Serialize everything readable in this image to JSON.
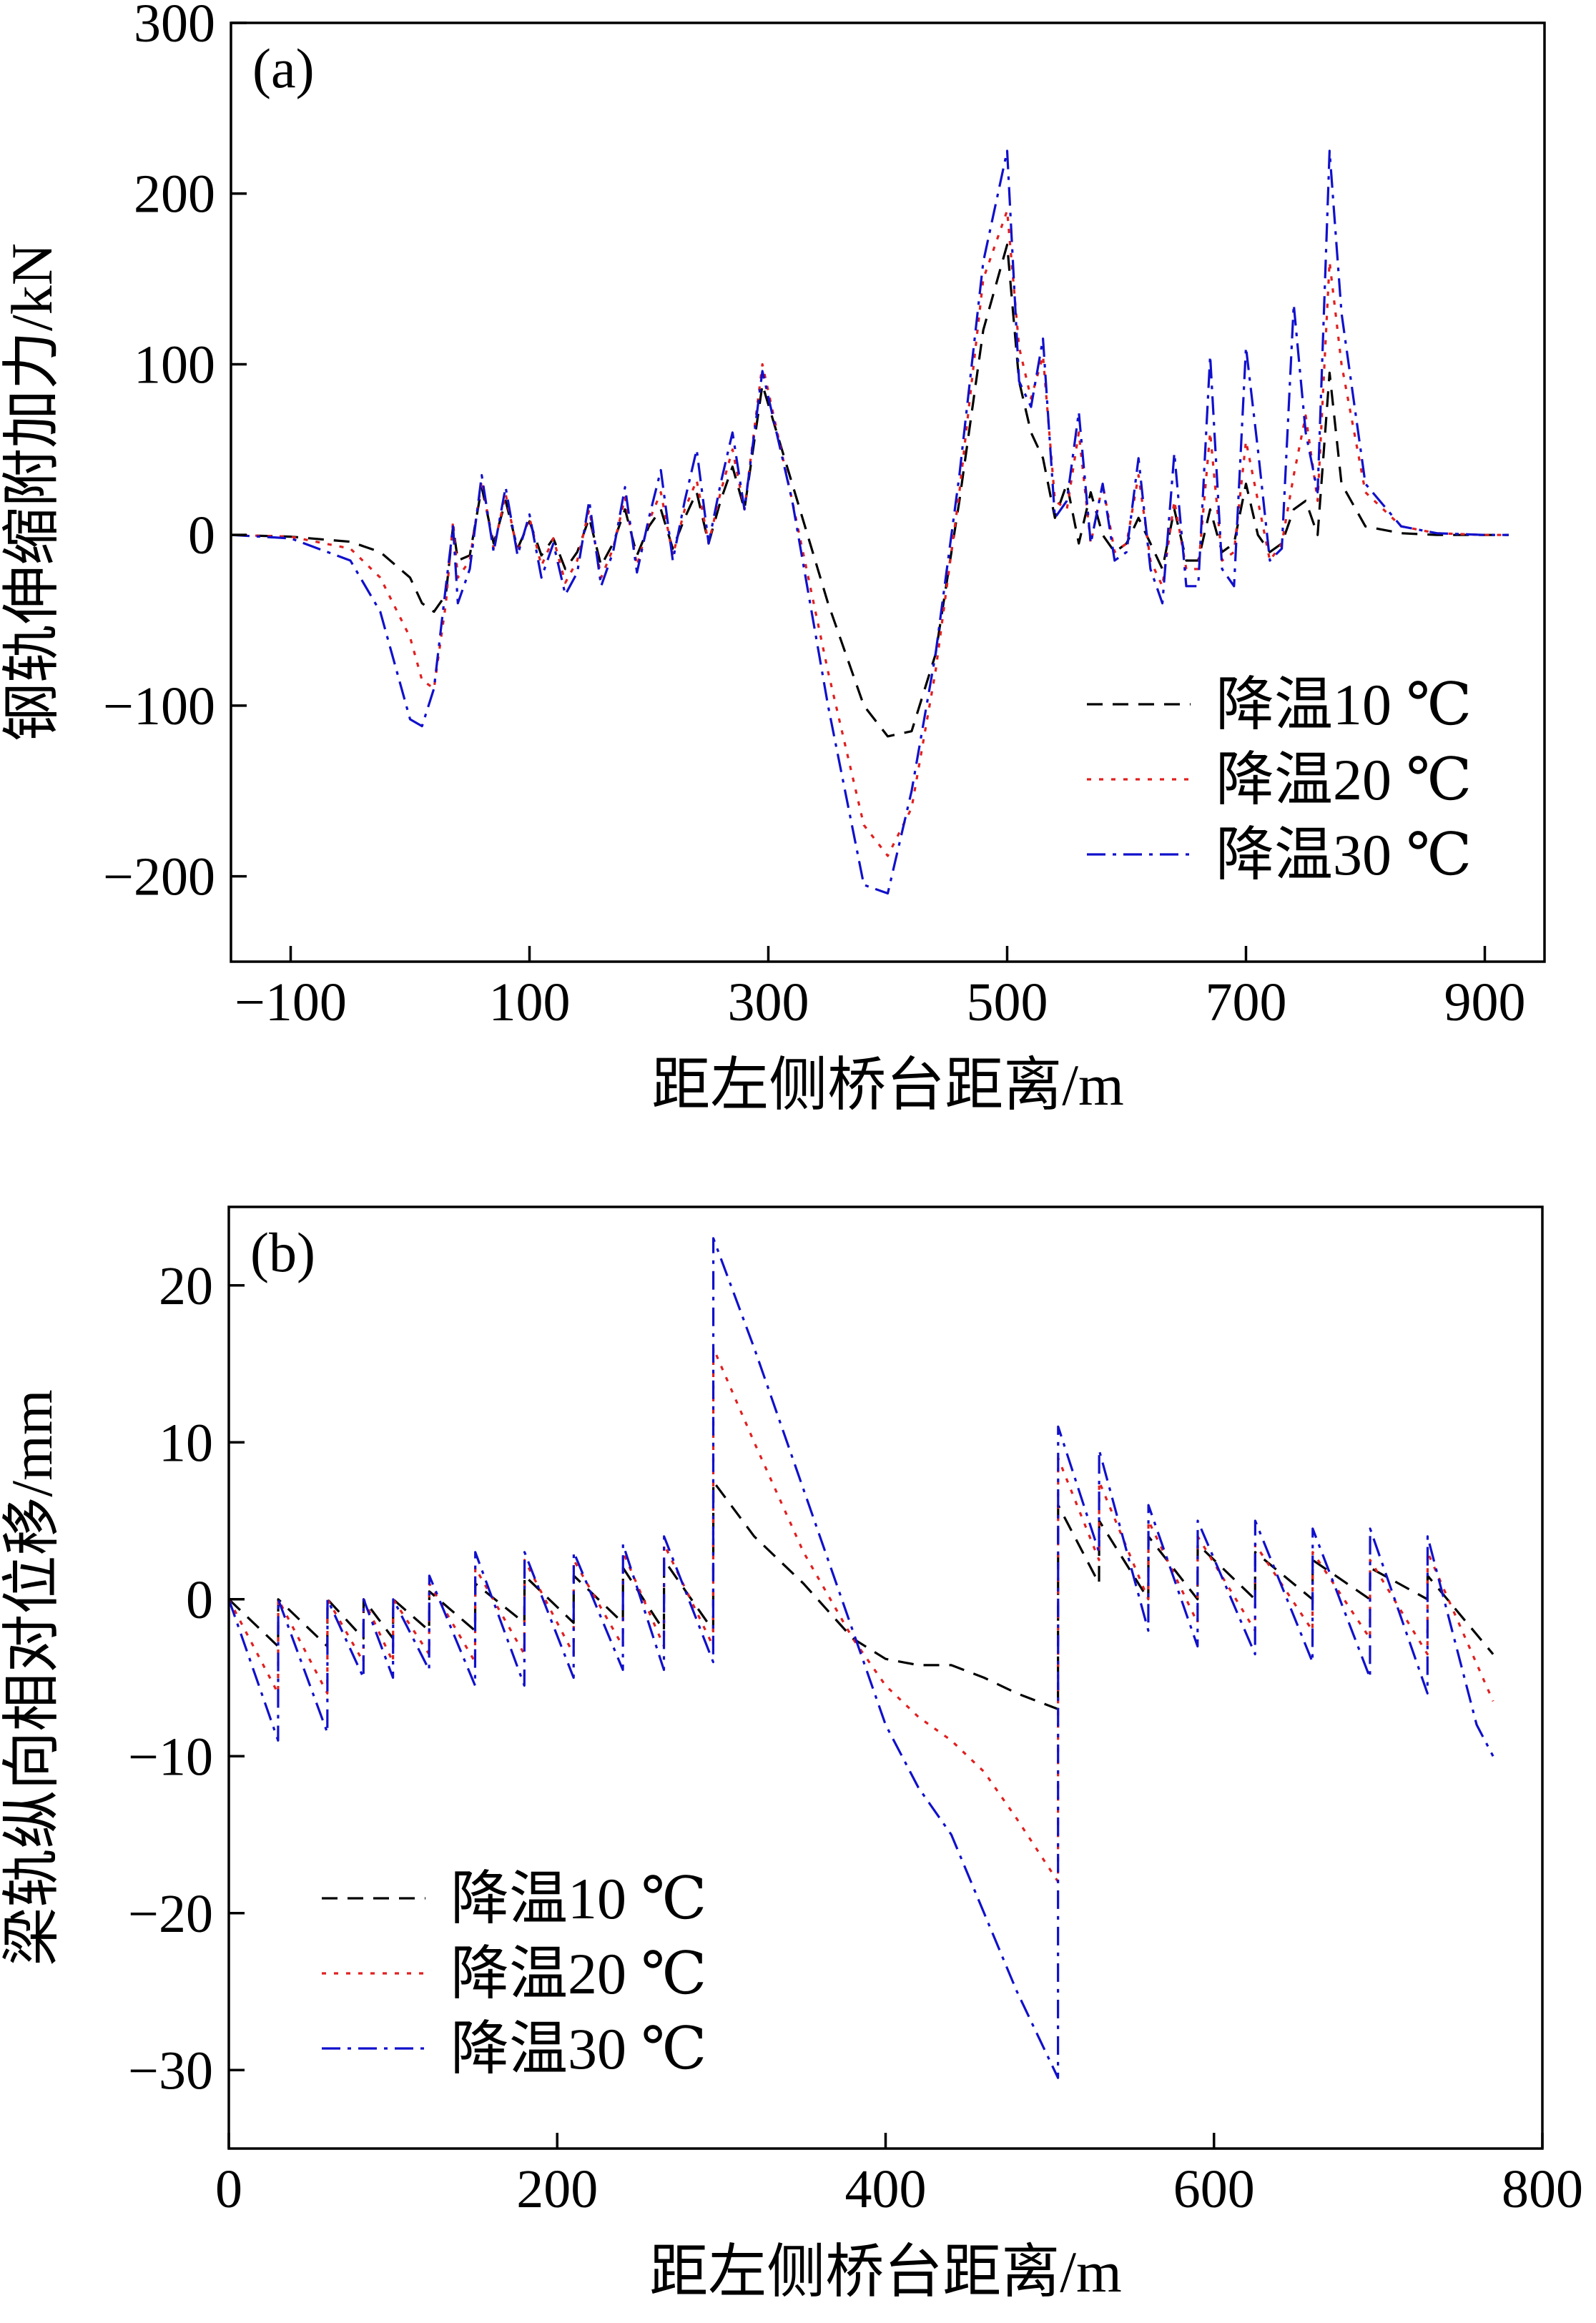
{
  "chart_data": [
    {
      "type": "line",
      "panel_label": "(a)",
      "xlabel": "距左侧桥台距离/m",
      "ylabel": "钢轨伸缩附加力/kN",
      "xlim": [
        -150,
        950
      ],
      "ylim": [
        -250,
        300
      ],
      "xticks": [
        -100,
        100,
        300,
        500,
        700,
        900
      ],
      "yticks": [
        -200,
        -100,
        0,
        100,
        200,
        300
      ],
      "xtick_labels": [
        "−100",
        "100",
        "300",
        "500",
        "700",
        "900"
      ],
      "ytick_labels": [
        "−200",
        "−100",
        "0",
        "100",
        "200",
        "300"
      ],
      "legend_position": "bottom-right",
      "series": [
        {
          "name": "降温10 ℃",
          "color": "#000000",
          "dash": "dashed",
          "x": [
            -150,
            -100,
            -50,
            -25,
            0,
            10,
            20,
            30,
            36,
            40,
            50,
            60,
            70,
            80,
            90,
            100,
            110,
            120,
            130,
            140,
            150,
            160,
            170,
            180,
            190,
            200,
            210,
            220,
            230,
            240,
            250,
            260,
            270,
            280,
            295,
            320,
            350,
            380,
            400,
            420,
            440,
            460,
            480,
            500,
            510,
            520,
            530,
            540,
            550,
            560,
            570,
            580,
            590,
            600,
            610,
            620,
            630,
            640,
            650,
            660,
            670,
            680,
            690,
            700,
            710,
            720,
            730,
            740,
            750,
            760,
            770,
            780,
            800,
            830,
            860,
            900,
            920
          ],
          "y": [
            0,
            -1,
            -4,
            -10,
            -25,
            -40,
            -45,
            -35,
            5,
            -15,
            -12,
            28,
            -5,
            20,
            -8,
            8,
            -12,
            -2,
            -20,
            -10,
            10,
            -18,
            -5,
            15,
            -12,
            5,
            15,
            -8,
            10,
            25,
            -5,
            20,
            40,
            15,
            88,
            30,
            -40,
            -100,
            -118,
            -115,
            -70,
            20,
            120,
            170,
            90,
            60,
            45,
            10,
            30,
            -5,
            25,
            0,
            -10,
            -5,
            10,
            -5,
            -20,
            15,
            -15,
            -15,
            15,
            -10,
            -5,
            30,
            0,
            -10,
            -5,
            15,
            20,
            0,
            95,
            30,
            5,
            1,
            0,
            0,
            0
          ]
        },
        {
          "name": "降温20 ℃",
          "color": "#e02020",
          "dash": "dotted",
          "x": [
            -150,
            -100,
            -50,
            -25,
            0,
            10,
            20,
            30,
            36,
            40,
            50,
            60,
            70,
            80,
            90,
            100,
            110,
            120,
            130,
            140,
            150,
            160,
            170,
            180,
            190,
            200,
            210,
            220,
            230,
            240,
            250,
            260,
            270,
            280,
            295,
            320,
            350,
            380,
            400,
            420,
            440,
            460,
            480,
            500,
            510,
            520,
            530,
            540,
            550,
            560,
            570,
            580,
            590,
            600,
            610,
            620,
            630,
            640,
            650,
            660,
            670,
            680,
            690,
            700,
            710,
            720,
            730,
            740,
            750,
            760,
            770,
            780,
            800,
            830,
            860,
            900,
            920
          ],
          "y": [
            0,
            -1,
            -8,
            -25,
            -60,
            -85,
            -90,
            -40,
            8,
            -25,
            -15,
            32,
            -8,
            24,
            -10,
            10,
            -18,
            -2,
            -28,
            -15,
            15,
            -25,
            -8,
            22,
            -18,
            8,
            25,
            -12,
            15,
            32,
            -5,
            25,
            50,
            15,
            100,
            20,
            -80,
            -170,
            -188,
            -160,
            -80,
            25,
            150,
            190,
            110,
            80,
            105,
            20,
            15,
            60,
            -5,
            30,
            -10,
            -5,
            35,
            -15,
            -30,
            20,
            -20,
            -20,
            60,
            -15,
            -10,
            55,
            20,
            -15,
            -5,
            35,
            70,
            20,
            160,
            100,
            25,
            5,
            1,
            0,
            0
          ]
        },
        {
          "name": "降温30 ℃",
          "color": "#1010cc",
          "dash": "dashdot",
          "x": [
            -150,
            -100,
            -50,
            -25,
            0,
            10,
            20,
            30,
            36,
            40,
            50,
            60,
            70,
            80,
            90,
            100,
            110,
            120,
            130,
            140,
            150,
            160,
            170,
            180,
            190,
            200,
            210,
            220,
            230,
            240,
            250,
            260,
            270,
            280,
            295,
            320,
            350,
            380,
            400,
            420,
            440,
            460,
            480,
            500,
            510,
            520,
            530,
            540,
            550,
            560,
            570,
            580,
            590,
            600,
            610,
            620,
            630,
            640,
            650,
            660,
            670,
            680,
            690,
            700,
            710,
            720,
            730,
            740,
            750,
            760,
            770,
            780,
            800,
            830,
            860,
            900,
            920
          ],
          "y": [
            0,
            -2,
            -15,
            -45,
            -108,
            -112,
            -90,
            -30,
            5,
            -40,
            -20,
            35,
            -10,
            28,
            -12,
            12,
            -25,
            -5,
            -35,
            -22,
            20,
            -30,
            -10,
            28,
            -22,
            10,
            38,
            -15,
            20,
            50,
            -5,
            30,
            60,
            15,
            96,
            20,
            -100,
            -205,
            -210,
            -150,
            -70,
            35,
            160,
            225,
            90,
            75,
            115,
            10,
            20,
            72,
            -5,
            30,
            -15,
            -10,
            45,
            -20,
            -40,
            48,
            -30,
            -30,
            105,
            -20,
            -30,
            110,
            50,
            -15,
            -8,
            135,
            60,
            25,
            225,
            130,
            30,
            5,
            1,
            0,
            0
          ]
        }
      ]
    },
    {
      "type": "line",
      "panel_label": "(b)",
      "xlabel": "距左侧桥台距离/m",
      "ylabel": "梁轨纵向相对位移/mm",
      "xlim": [
        0,
        800
      ],
      "ylim": [
        -35,
        25
      ],
      "xticks": [
        0,
        200,
        400,
        600,
        800
      ],
      "yticks": [
        -30,
        -20,
        -10,
        0,
        10,
        20
      ],
      "xtick_labels": [
        "0",
        "200",
        "400",
        "600",
        "800"
      ],
      "ytick_labels": [
        "−30",
        "−20",
        "−10",
        "0",
        "10",
        "20"
      ],
      "legend_position": "bottom-left",
      "series": [
        {
          "name": "降温10 ℃",
          "color": "#000000",
          "dash": "dashed",
          "x": [
            0,
            30,
            30.1,
            60,
            60.1,
            82,
            82.1,
            100,
            100.1,
            122,
            122.1,
            150,
            150.1,
            180,
            180.1,
            210,
            210.1,
            240,
            240.1,
            265,
            265.1,
            295,
            295.1,
            320,
            350,
            380,
            400,
            420,
            440,
            460,
            480,
            505,
            505.1,
            530,
            530.1,
            560,
            560.1,
            590,
            590.1,
            625,
            625.1,
            660,
            660.1,
            695,
            695.1,
            730,
            730.1,
            770
          ],
          "y": [
            0,
            -3,
            0,
            -3,
            0,
            -2.5,
            0,
            -2.5,
            0,
            -2,
            0.5,
            -2,
            1,
            -1.5,
            1.5,
            -1.5,
            1.5,
            -1.5,
            2,
            -2,
            2.5,
            -2,
            7.5,
            4,
            1,
            -2.5,
            -3.8,
            -4.2,
            -4.2,
            -5,
            -6,
            -7,
            6,
            1,
            5,
            0,
            4,
            0,
            3.5,
            0,
            3,
            0,
            2.5,
            0,
            2,
            0,
            1.5,
            -3.5
          ]
        },
        {
          "name": "降温20 ℃",
          "color": "#e02020",
          "dash": "dotted",
          "x": [
            0,
            30,
            30.1,
            60,
            60.1,
            82,
            82.1,
            100,
            100.1,
            122,
            122.1,
            150,
            150.1,
            180,
            180.1,
            210,
            210.1,
            240,
            240.1,
            265,
            265.1,
            295,
            295.1,
            320,
            350,
            380,
            400,
            420,
            440,
            460,
            480,
            505,
            505.1,
            530,
            530.1,
            560,
            560.1,
            590,
            590.1,
            625,
            625.1,
            660,
            660.1,
            695,
            695.1,
            730,
            730.1,
            770
          ],
          "y": [
            0,
            -6,
            0,
            -6,
            0,
            -4,
            0,
            -4,
            0,
            -3.5,
            1,
            -4,
            2,
            -3.5,
            2.5,
            -3.5,
            2.5,
            -3,
            3,
            -3,
            3.5,
            -3,
            16,
            10,
            3,
            -2.5,
            -5.5,
            -7.5,
            -9,
            -11,
            -14,
            -18,
            9,
            2.5,
            7.5,
            0,
            5,
            -1.5,
            4,
            -2,
            3.5,
            -2,
            3,
            -2.5,
            2.5,
            -3.5,
            3,
            -6.5
          ]
        },
        {
          "name": "降温30 ℃",
          "color": "#1010cc",
          "dash": "dashdot",
          "x": [
            0,
            30,
            30.1,
            60,
            60.1,
            82,
            82.1,
            100,
            100.1,
            122,
            122.1,
            150,
            150.1,
            180,
            180.1,
            210,
            210.1,
            240,
            240.1,
            265,
            265.1,
            295,
            295.1,
            320,
            350,
            380,
            400,
            420,
            440,
            460,
            480,
            505,
            505.1,
            530,
            530.1,
            560,
            560.1,
            590,
            590.1,
            625,
            625.1,
            660,
            660.1,
            695,
            695.1,
            730,
            730.1,
            760,
            770
          ],
          "y": [
            0,
            -9,
            0,
            -8.5,
            0,
            -5,
            0,
            -5,
            0,
            -4.5,
            1.5,
            -5.5,
            3,
            -5.5,
            3,
            -5,
            3,
            -4.5,
            3.5,
            -4.5,
            4,
            -4,
            23,
            16,
            7,
            -2,
            -8,
            -12,
            -15,
            -20,
            -25,
            -30.5,
            11,
            3,
            9.5,
            -2,
            6,
            -3,
            5,
            -3.5,
            5,
            -4,
            4.5,
            -5,
            4.5,
            -6,
            4,
            -8,
            -10
          ]
        }
      ]
    }
  ]
}
